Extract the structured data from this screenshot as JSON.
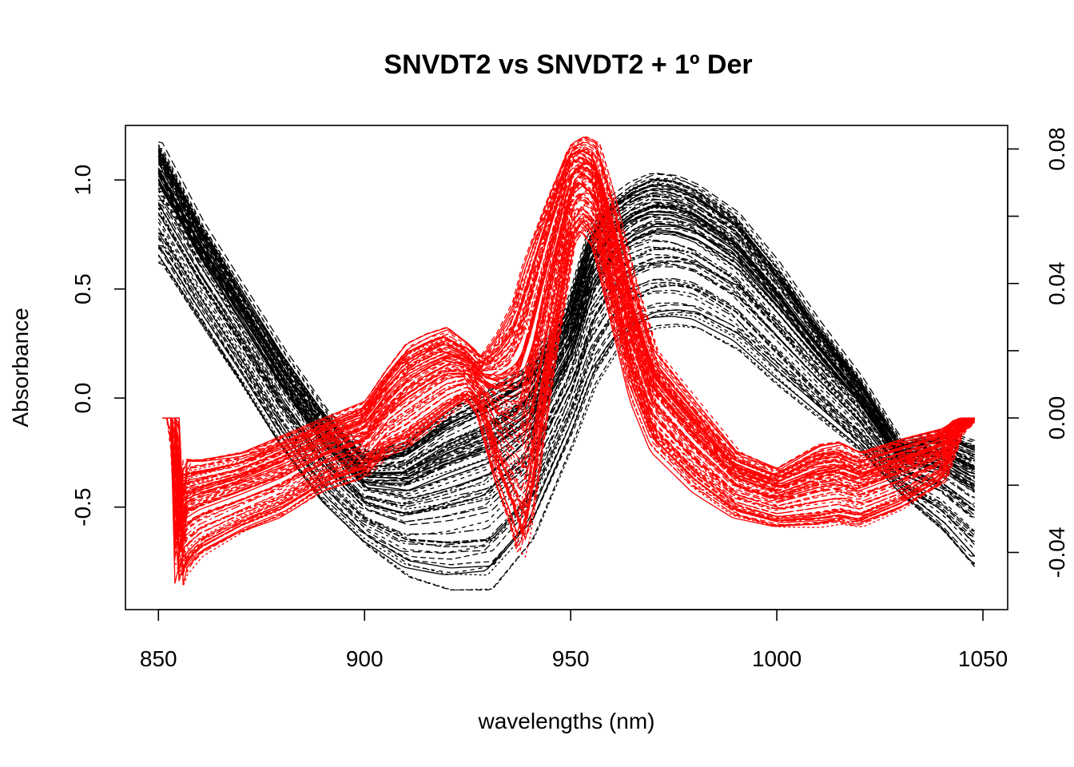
{
  "chart_data": {
    "type": "line",
    "title": "SNVDT2 vs SNVDT2 + 1º Der",
    "xlabel": "wavelengths (nm)",
    "ylabel": "Absorbance",
    "xlim": [
      842,
      1056
    ],
    "ylim": [
      -0.97,
      1.25
    ],
    "y2lim": [
      -0.057,
      0.087
    ],
    "x_ticks": [
      850,
      900,
      950,
      1000,
      1050
    ],
    "y_ticks": [
      -0.5,
      0.0,
      0.5,
      1.0
    ],
    "y2_ticks": [
      -0.04,
      -0.02,
      0.0,
      0.02,
      0.04,
      0.06,
      0.08
    ],
    "y2_tick_labels": [
      "-0.04",
      "0.00",
      "0.04",
      "0.08"
    ],
    "colors": {
      "snvdt2": "#000000",
      "derivative": "#ff0000"
    },
    "series": [
      {
        "axis": "left",
        "color": "#000000",
        "x": [
          850,
          860,
          870,
          880,
          890,
          900,
          910,
          920,
          930,
          940,
          950,
          955,
          960,
          965,
          970,
          975,
          980,
          990,
          1000,
          1010,
          1020,
          1030,
          1040,
          1048
        ],
        "upper": [
          1.18,
          0.82,
          0.52,
          0.22,
          -0.05,
          -0.25,
          -0.2,
          -0.05,
          0.05,
          0.15,
          0.45,
          0.78,
          0.92,
          0.99,
          1.03,
          1.02,
          0.98,
          0.85,
          0.62,
          0.35,
          0.1,
          -0.2,
          -0.15,
          -0.2
        ],
        "lower": [
          0.62,
          0.33,
          0.05,
          -0.25,
          -0.5,
          -0.68,
          -0.82,
          -0.88,
          -0.88,
          -0.65,
          -0.2,
          0.05,
          0.2,
          0.28,
          0.32,
          0.33,
          0.32,
          0.22,
          0.05,
          -0.1,
          -0.25,
          -0.45,
          -0.62,
          -0.8
        ]
      },
      {
        "axis": "right",
        "color": "#ff0000",
        "x": [
          851,
          854,
          855,
          856,
          860,
          870,
          880,
          890,
          900,
          905,
          910,
          915,
          920,
          925,
          928,
          932,
          936,
          938,
          940,
          945,
          950,
          953,
          956,
          960,
          965,
          970,
          980,
          990,
          1000,
          1010,
          1015,
          1020,
          1030,
          1040,
          1044,
          1048
        ],
        "upper": [
          0.0,
          0.0,
          -0.03,
          -0.012,
          -0.012,
          -0.01,
          -0.005,
          0.0,
          0.005,
          0.014,
          0.022,
          0.025,
          0.027,
          0.022,
          0.018,
          0.025,
          0.035,
          0.045,
          0.052,
          0.068,
          0.082,
          0.084,
          0.082,
          0.065,
          0.04,
          0.02,
          0.005,
          -0.01,
          -0.015,
          -0.008,
          -0.007,
          -0.01,
          -0.006,
          -0.003,
          0.0,
          0.0
        ],
        "lower": [
          0.0,
          0.0,
          -0.052,
          -0.048,
          -0.042,
          -0.035,
          -0.03,
          -0.022,
          -0.018,
          -0.012,
          -0.01,
          -0.005,
          0.0,
          0.005,
          0.0,
          -0.02,
          -0.035,
          -0.045,
          -0.035,
          0.01,
          0.05,
          0.055,
          0.05,
          0.03,
          0.005,
          -0.01,
          -0.022,
          -0.03,
          -0.033,
          -0.033,
          -0.032,
          -0.033,
          -0.028,
          -0.02,
          -0.005,
          0.0
        ]
      }
    ]
  }
}
